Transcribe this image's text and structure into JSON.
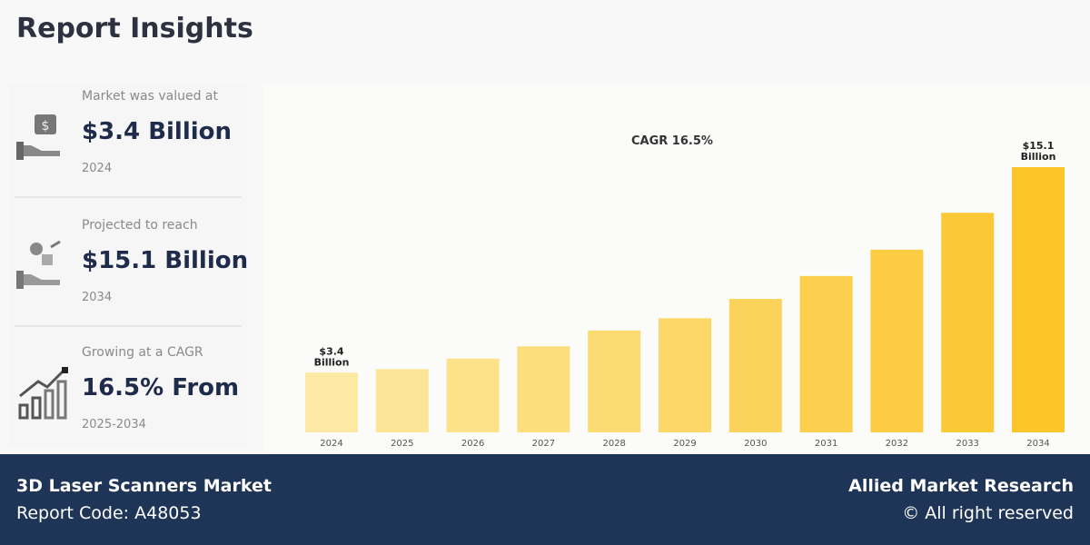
{
  "title": "Report Insights",
  "stats": [
    {
      "label": "Market was valued at",
      "value": "$3.4 Billion",
      "sub": "2024",
      "icon": "money-hand-icon"
    },
    {
      "label": "Projected to reach",
      "value": "$15.1 Billion",
      "sub": "2034",
      "icon": "growth-hand-icon"
    },
    {
      "label": "Growing at a CAGR",
      "value": "16.5% From",
      "sub": "2025-2034",
      "icon": "bar-growth-icon"
    }
  ],
  "chart_data": {
    "type": "bar",
    "title": "",
    "annotation": "CAGR 16.5%",
    "categories": [
      "2024",
      "2025",
      "2026",
      "2027",
      "2028",
      "2029",
      "2030",
      "2031",
      "2032",
      "2033",
      "2034"
    ],
    "values": [
      3.4,
      3.6,
      4.2,
      4.9,
      5.8,
      6.5,
      7.6,
      8.9,
      10.4,
      12.5,
      15.1
    ],
    "data_labels": {
      "0": [
        "$3.4",
        "Billion"
      ],
      "10": [
        "$15.1",
        "Billion"
      ]
    },
    "ylim": [
      0,
      15.1
    ],
    "grid": false,
    "colors": [
      "#fde9a3",
      "#fcc52a"
    ]
  },
  "footer": {
    "market": "3D Laser Scanners Market",
    "code": "Report Code: A48053",
    "brand": "Allied Market Research",
    "rights": "© All right reserved"
  }
}
